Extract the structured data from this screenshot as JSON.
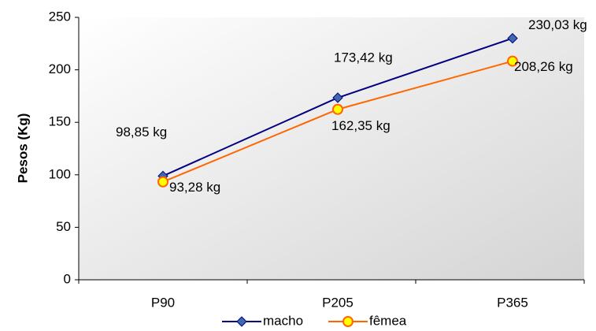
{
  "chart_data": {
    "type": "line",
    "y_label": "Pesos (Kg)",
    "categories": [
      "P90",
      "P205",
      "P365"
    ],
    "series": [
      {
        "name": "macho",
        "color": "#000080",
        "marker_color": "#4169b0",
        "values": [
          98.85,
          173.42,
          230.03
        ],
        "value_labels": [
          "98,85 kg",
          "173,42 kg",
          "230,03 kg"
        ]
      },
      {
        "name": "fêmea",
        "color": "#ff6600",
        "marker_color": "#ffff00",
        "values": [
          93.28,
          162.35,
          208.26
        ],
        "value_labels": [
          "93,28 kg",
          "162,35 kg",
          "208,26 kg"
        ]
      }
    ],
    "ylim": [
      0,
      250
    ],
    "yticks": [
      0,
      50,
      100,
      150,
      200,
      250
    ],
    "grid": false,
    "legend": "bottom"
  }
}
